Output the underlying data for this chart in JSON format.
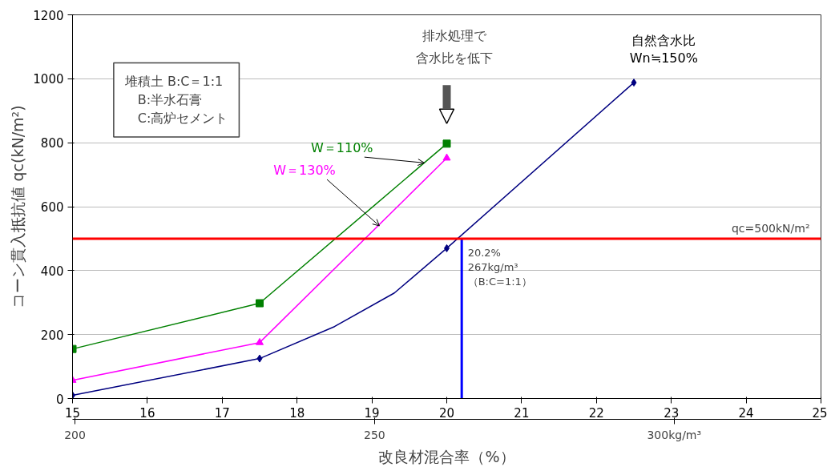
{
  "chart_data": {
    "type": "line",
    "xlabel": "改良材混合率（%）",
    "ylabel": "コーン貫入抵抗値 qc(kN/m²)",
    "xlim": [
      15,
      25
    ],
    "xticks": [
      15,
      16,
      17,
      18,
      19,
      20,
      21,
      22,
      23,
      24,
      25
    ],
    "ylim": [
      0,
      1200
    ],
    "yticks": [
      0,
      200,
      400,
      600,
      800,
      1000,
      1200
    ],
    "x2lim": [
      199.6,
      324.5
    ],
    "x2ticks": [
      200,
      250,
      {
        "value": 300,
        "label": "300kg/m³"
      }
    ],
    "grid": "y",
    "series": [
      {
        "name": "W＝110%",
        "color": "#008000",
        "marker": "square",
        "x": [
          15,
          17.5,
          20
        ],
        "values": [
          155,
          298,
          797
        ]
      },
      {
        "name": "W＝130%",
        "color": "#ff00ff",
        "marker": "triangle",
        "x": [
          15,
          17.5,
          20
        ],
        "values": [
          57,
          175,
          752
        ]
      },
      {
        "name": "自然含水比\nWn≒150%",
        "color": "#000080",
        "marker": "diamond",
        "x": [
          15,
          17.5,
          18.5,
          19.3,
          20,
          22.5
        ],
        "values": [
          10,
          125,
          225,
          330,
          470,
          988
        ]
      }
    ],
    "ref_lines": [
      {
        "axis": "y",
        "value": 500,
        "label": "qc=500kN/m²",
        "color": "#ff0000"
      },
      {
        "axis": "x",
        "value": 20.2,
        "label": "20.2%\n267kg/m³\n（B:C=1:1）",
        "color": "#0000ff"
      }
    ],
    "annotations": [
      "堆積土 B:C＝1:1\n　B:半水石膏\n　C:高炉セメント",
      "排水処理で",
      "含水比を低下"
    ]
  }
}
